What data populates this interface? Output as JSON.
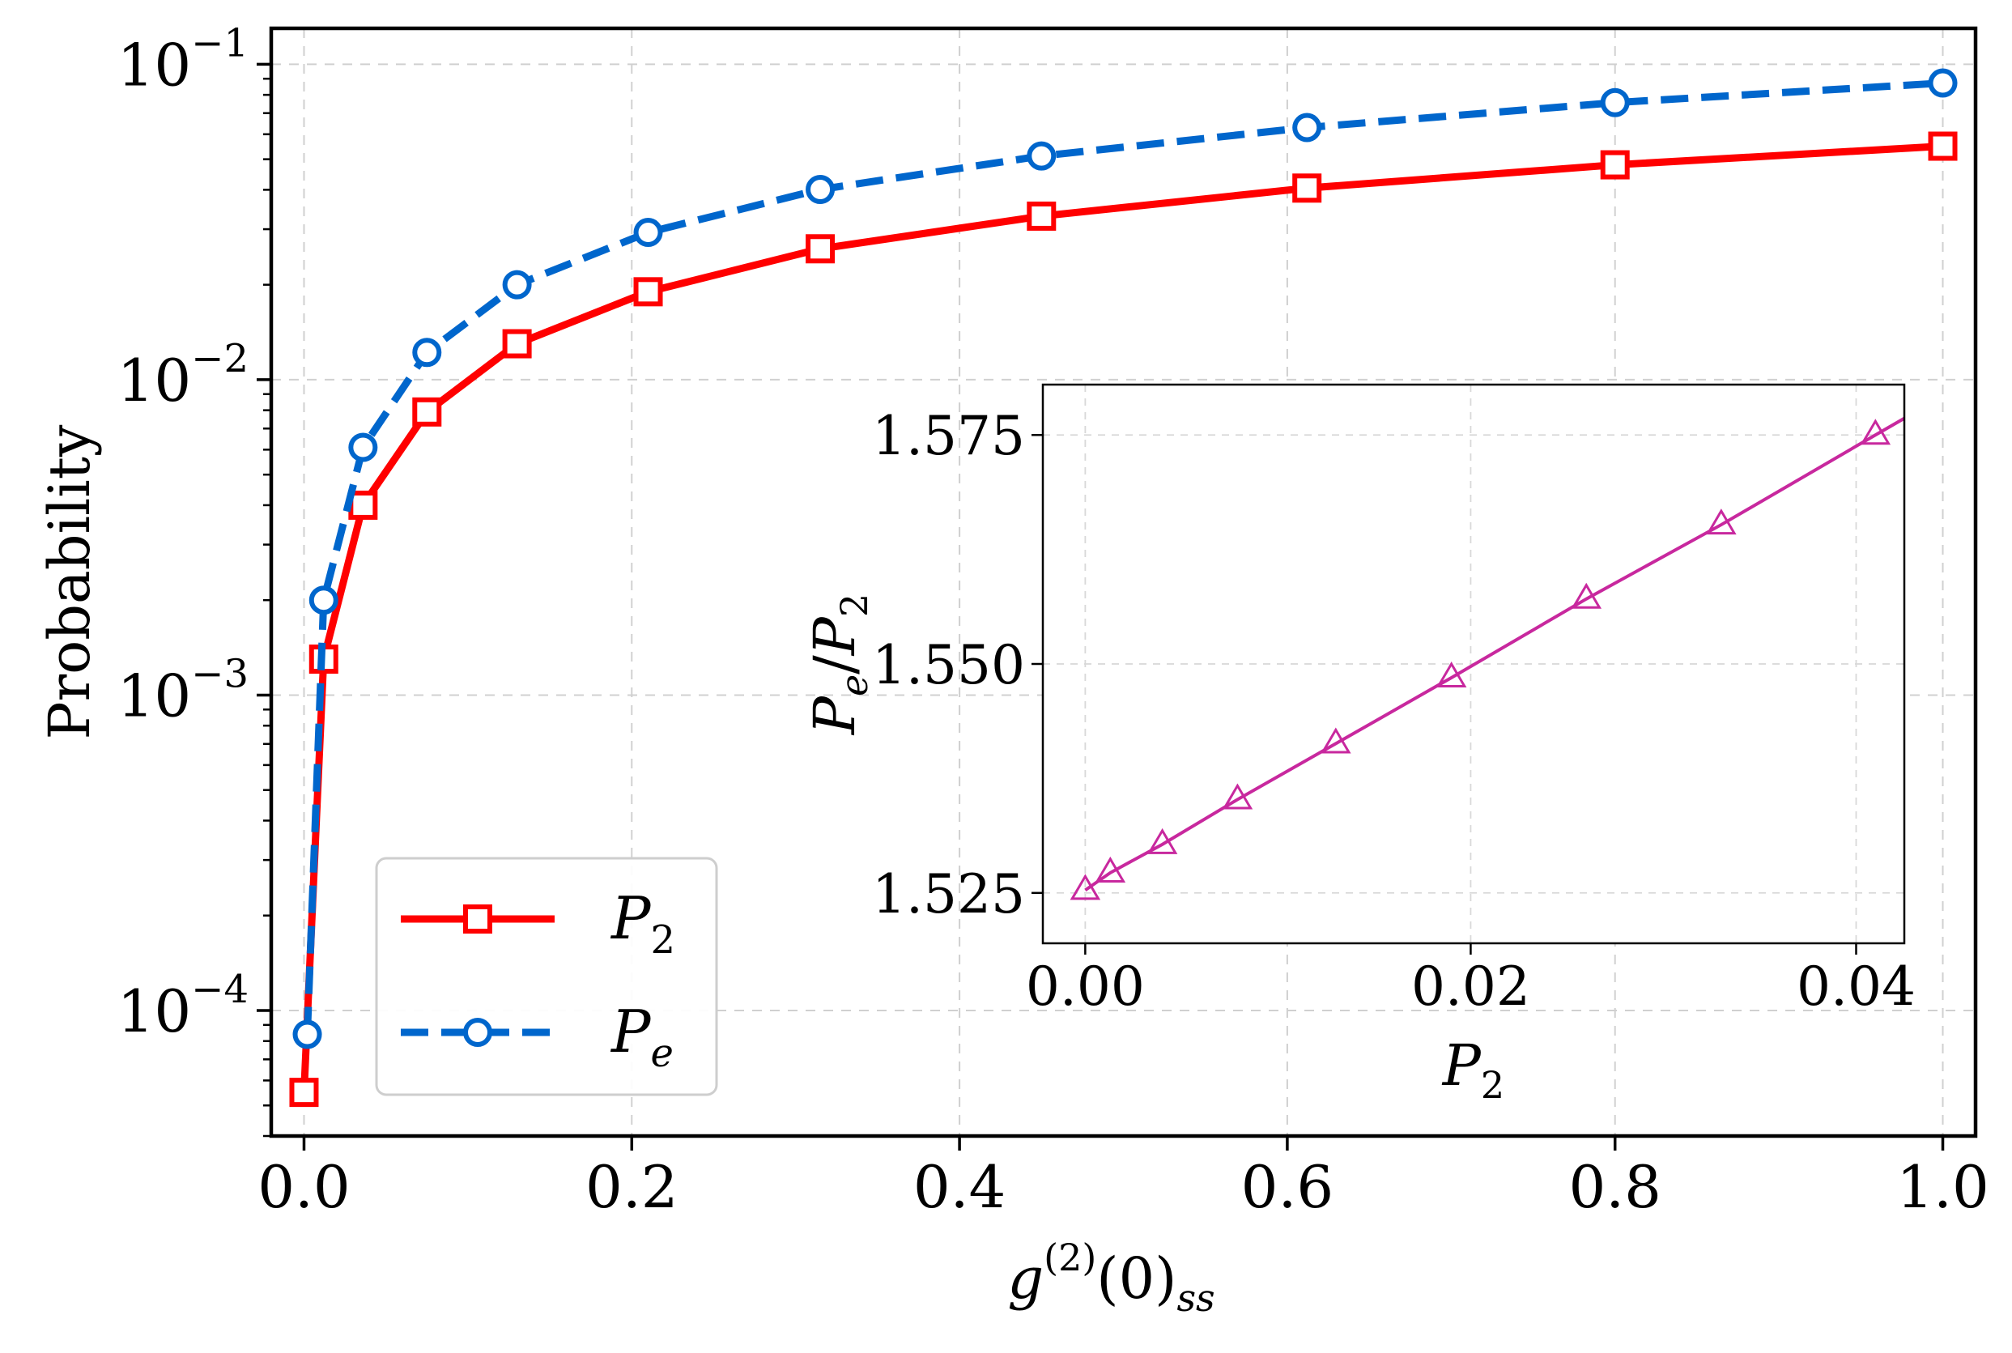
{
  "chart_data": [
    {
      "type": "line",
      "yscale": "log",
      "xlabel": "g(2)(0)ss",
      "xlabel_parts": {
        "g": "g",
        "sup": "(2)",
        "mid": "(0)",
        "sub": "ss"
      },
      "ylabel": "Probability",
      "xlim": [
        -0.02,
        1.02
      ],
      "ylim": [
        4e-05,
        0.13
      ],
      "xticks": [
        0.0,
        0.2,
        0.4,
        0.6,
        0.8,
        1.0
      ],
      "xtick_labels": [
        "0.0",
        "0.2",
        "0.4",
        "0.6",
        "0.8",
        "1.0"
      ],
      "yticks": [
        0.0001,
        0.001,
        0.01,
        0.1
      ],
      "ytick_labels": [
        {
          "base": "10",
          "exp": "−4"
        },
        {
          "base": "10",
          "exp": "−3"
        },
        {
          "base": "10",
          "exp": "−2"
        },
        {
          "base": "10",
          "exp": "−1"
        }
      ],
      "grid": true,
      "legend_position": "lower-left",
      "series": [
        {
          "name": "P2",
          "label_main": "P",
          "label_sub": "2",
          "color": "#ff0000",
          "linestyle": "solid",
          "marker": "square",
          "x": [
            0.0,
            0.012,
            0.036,
            0.075,
            0.13,
            0.21,
            0.315,
            0.45,
            0.612,
            0.8,
            1.0
          ],
          "y": [
            5.5e-05,
            0.0013,
            0.004,
            0.0079,
            0.013,
            0.019,
            0.026,
            0.033,
            0.0405,
            0.048,
            0.055
          ]
        },
        {
          "name": "Pe",
          "label_main": "P",
          "label_sub": "e",
          "color": "#0066cc",
          "linestyle": "dashed",
          "marker": "circle",
          "x": [
            0.002,
            0.012,
            0.036,
            0.075,
            0.13,
            0.21,
            0.315,
            0.45,
            0.612,
            0.8,
            1.0
          ],
          "y": [
            8.4e-05,
            0.002,
            0.0061,
            0.0122,
            0.02,
            0.0293,
            0.0401,
            0.0512,
            0.063,
            0.0756,
            0.0872
          ]
        }
      ]
    },
    {
      "type": "line",
      "role": "inset",
      "xlabel_main": "P",
      "xlabel_sub": "2",
      "ylabel_parts": {
        "a": "P",
        "a_sub": "e",
        "slash": "/",
        "b": "P",
        "b_sub": "2"
      },
      "xlim": [
        -0.0022,
        0.0425
      ],
      "ylim": [
        1.5195,
        1.5805
      ],
      "xticks": [
        0.0,
        0.02,
        0.04
      ],
      "xtick_labels": [
        "0.00",
        "0.02",
        "0.04"
      ],
      "yticks": [
        1.525,
        1.55,
        1.575
      ],
      "ytick_labels": [
        "1.525",
        "1.550",
        "1.575"
      ],
      "grid": true,
      "series": [
        {
          "name": "Pe/P2",
          "color": "#c8289e",
          "linestyle": "solid",
          "marker": "triangle-open",
          "x": [
            0.0,
            0.0013,
            0.004,
            0.0079,
            0.013,
            0.019,
            0.026,
            0.033,
            0.041
          ],
          "y": [
            1.5253,
            1.5272,
            1.5303,
            1.5352,
            1.5413,
            1.5485,
            1.5571,
            1.5652,
            1.575
          ]
        }
      ]
    }
  ]
}
